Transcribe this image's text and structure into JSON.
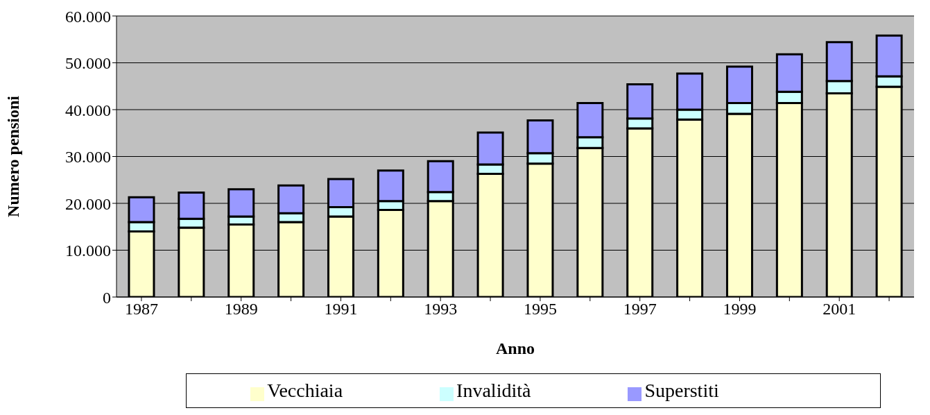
{
  "chart_data": {
    "type": "bar",
    "stacked": true,
    "xlabel": "Anno",
    "ylabel": "Numero pensioni",
    "categories": [
      "1987",
      null,
      "1989",
      null,
      "1991",
      null,
      "1993",
      null,
      "1995",
      null,
      "1997",
      null,
      "1999",
      null,
      "2001",
      null
    ],
    "series": [
      {
        "name": "Vecchiaia",
        "color": "#ffffcc",
        "values": [
          14000,
          14800,
          15500,
          16000,
          17200,
          18600,
          20500,
          26300,
          28500,
          31800,
          36000,
          37900,
          39100,
          41400,
          43500,
          44900
        ]
      },
      {
        "name": "Invalidità",
        "color": "#ccffff",
        "values": [
          2000,
          1900,
          1700,
          1900,
          2000,
          1900,
          1900,
          2000,
          2200,
          2300,
          2100,
          2100,
          2300,
          2400,
          2600,
          2200
        ]
      },
      {
        "name": "Superstiti",
        "color": "#9999ff",
        "values": [
          5300,
          5600,
          5800,
          5900,
          6000,
          6500,
          6600,
          6800,
          7000,
          7300,
          7300,
          7700,
          7800,
          8000,
          8300,
          8700
        ]
      }
    ],
    "ylim": [
      0,
      60000
    ],
    "yticks": [
      0,
      {
        "value": 10000,
        "label": "10.000"
      },
      {
        "value": 20000,
        "label": "20.000"
      },
      {
        "value": 30000,
        "label": "30.000"
      },
      {
        "value": 40000,
        "label": "40.000"
      },
      {
        "value": 50000,
        "label": "50.000"
      },
      {
        "value": 60000,
        "label": "60.000"
      }
    ],
    "grid": "y",
    "legend": "bottom"
  }
}
